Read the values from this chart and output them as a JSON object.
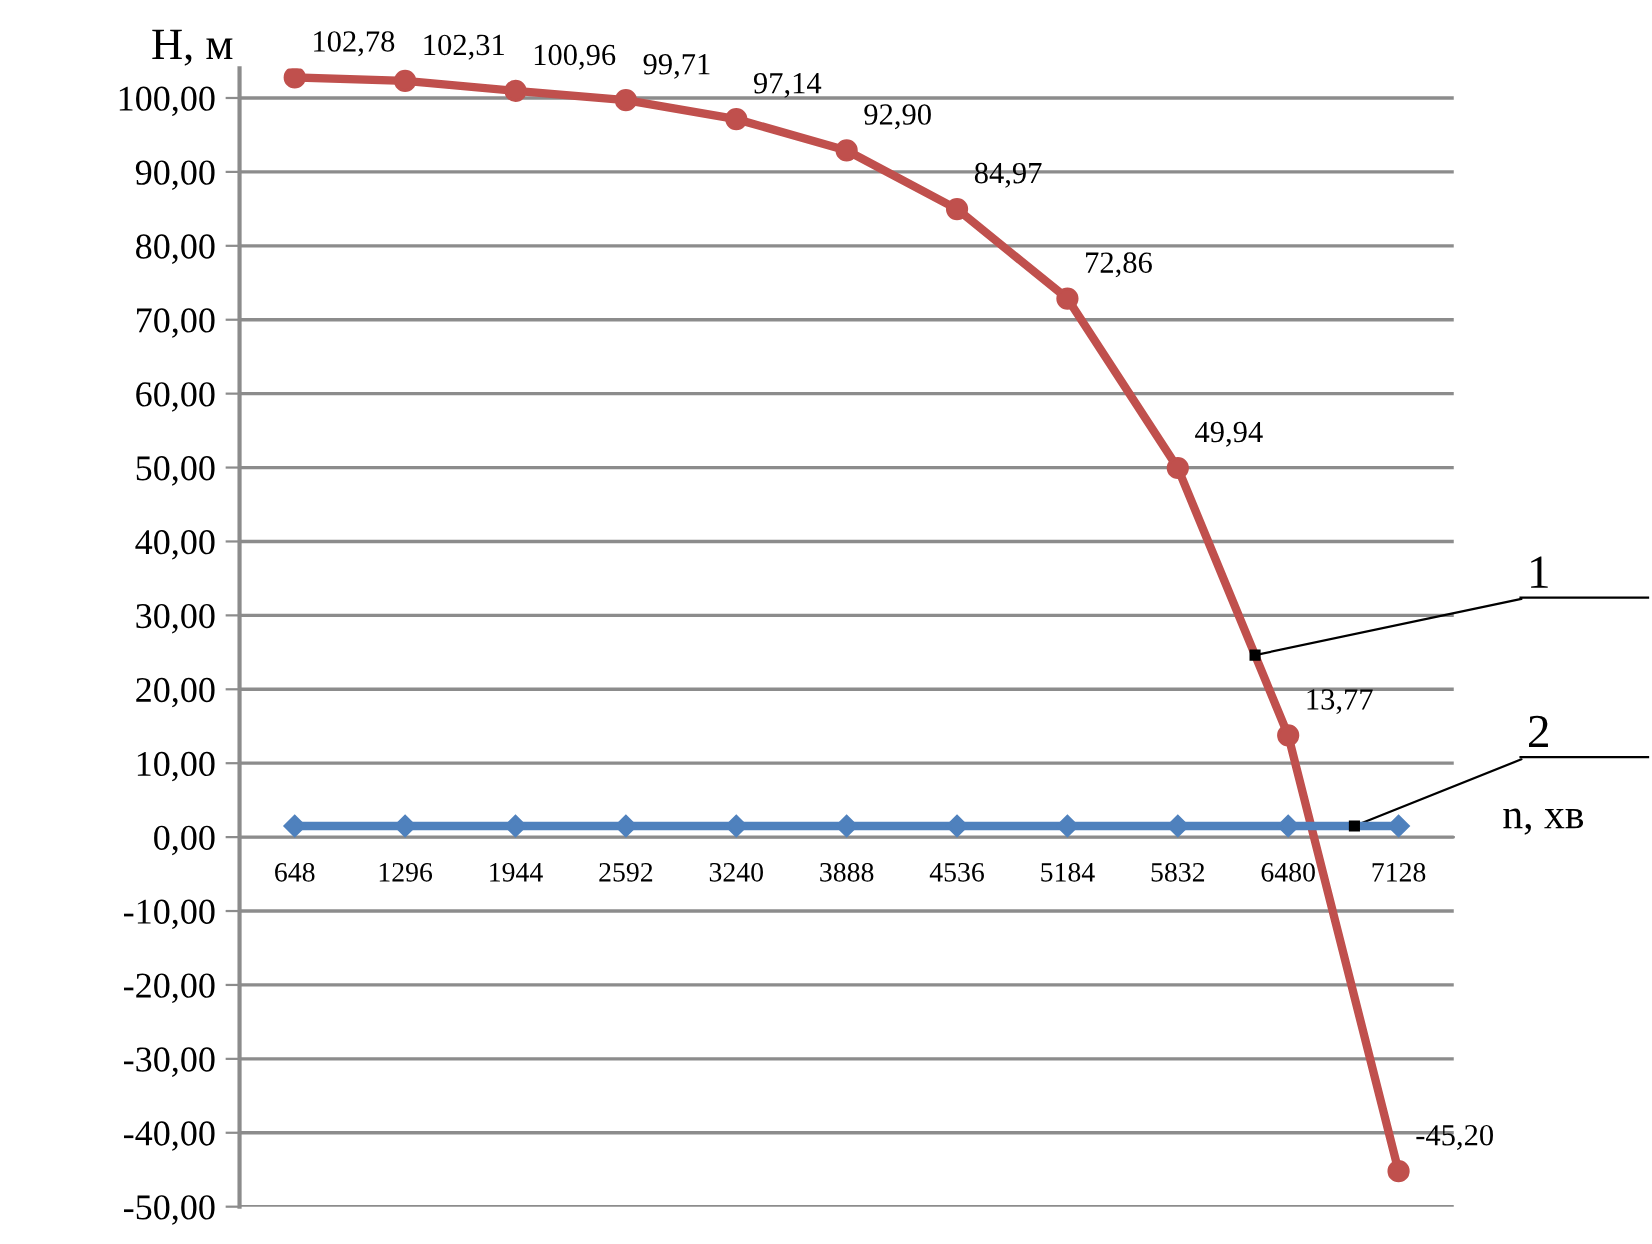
{
  "chart_data": {
    "type": "line",
    "ylabel": "H, м",
    "xlabel": "n, хв",
    "categories": [
      "648",
      "1296",
      "1944",
      "2592",
      "3240",
      "3888",
      "4536",
      "5184",
      "5832",
      "6480",
      "7128"
    ],
    "series": [
      {
        "name": "1",
        "color": "#c0504d",
        "marker": "circle",
        "values": [
          102.78,
          102.31,
          100.96,
          99.71,
          97.14,
          92.9,
          84.97,
          72.86,
          49.94,
          13.77,
          -45.2
        ],
        "value_labels": [
          "102,78",
          "102,31",
          "100,96",
          "99,71",
          "97,14",
          "92,90",
          "84,97",
          "72,86",
          "49,94",
          "13,77",
          "-45,20"
        ]
      },
      {
        "name": "2",
        "color": "#4f81bd",
        "marker": "diamond",
        "values": [
          1.5,
          1.5,
          1.5,
          1.5,
          1.5,
          1.5,
          1.5,
          1.5,
          1.5,
          1.5,
          1.5
        ]
      }
    ],
    "ylim": [
      -50,
      104
    ],
    "yticks": [
      {
        "value": -50,
        "label": "-50,00"
      },
      {
        "value": -40,
        "label": "-40,00"
      },
      {
        "value": -30,
        "label": "-30,00"
      },
      {
        "value": -20,
        "label": "-20,00"
      },
      {
        "value": -10,
        "label": "-10,00"
      },
      {
        "value": 0,
        "label": "0,00"
      },
      {
        "value": 10,
        "label": "10,00"
      },
      {
        "value": 20,
        "label": "20,00"
      },
      {
        "value": 30,
        "label": "30,00"
      },
      {
        "value": 40,
        "label": "40,00"
      },
      {
        "value": 50,
        "label": "50,00"
      },
      {
        "value": 60,
        "label": "60,00"
      },
      {
        "value": 70,
        "label": "70,00"
      },
      {
        "value": 80,
        "label": "80,00"
      },
      {
        "value": 90,
        "label": "90,00"
      },
      {
        "value": 100,
        "label": "100,00"
      }
    ],
    "grid": "y",
    "legend": false,
    "line_style": "solid"
  }
}
